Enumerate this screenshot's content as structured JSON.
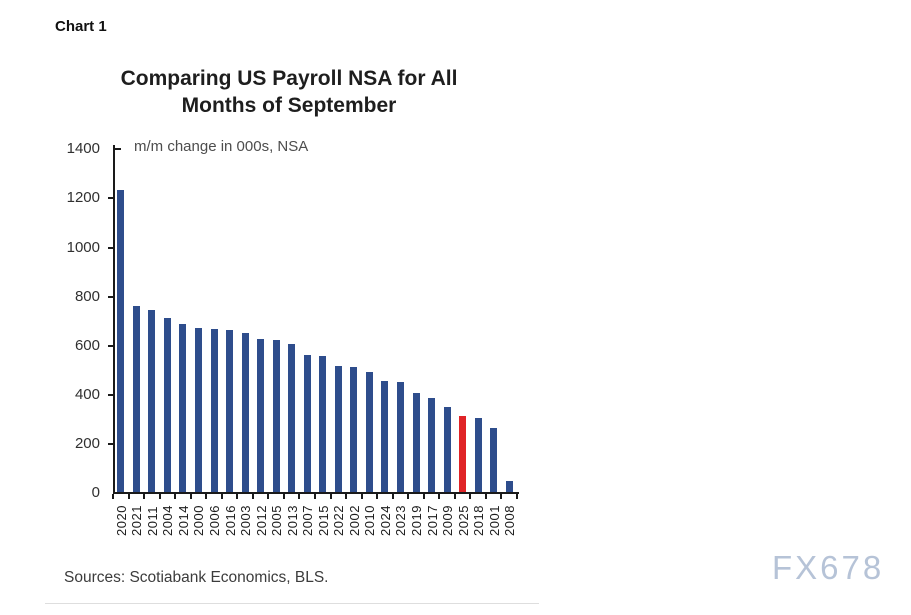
{
  "page": {
    "chart_label": "Chart 1",
    "sources": "Sources: Scotiabank Economics, BLS.",
    "watermark": "FX678"
  },
  "chart_data": {
    "type": "bar",
    "title_line1": "Comparing US Payroll NSA for All",
    "title_line2": "Months of September",
    "subtitle": "m/m change in 000s, NSA",
    "xlabel": "",
    "ylabel": "m/m change in 000s, NSA",
    "categories": [
      "2020",
      "2021",
      "2011",
      "2004",
      "2014",
      "2000",
      "2006",
      "2016",
      "2003",
      "2012",
      "2005",
      "2013",
      "2007",
      "2015",
      "2022",
      "2002",
      "2010",
      "2024",
      "2023",
      "2019",
      "2017",
      "2009",
      "2025",
      "2018",
      "2001",
      "2008"
    ],
    "values": [
      1230,
      757,
      742,
      710,
      686,
      667,
      662,
      658,
      648,
      622,
      618,
      601,
      560,
      553,
      514,
      510,
      487,
      452,
      448,
      405,
      381,
      347,
      310,
      301,
      259,
      45
    ],
    "highlight_category": "2025",
    "bar_color": "#2e4d8c",
    "highlight_color": "#e02427",
    "axis_color": "#1a1a1a",
    "ylim": [
      0,
      1400
    ],
    "y_ticks": [
      0,
      200,
      400,
      600,
      800,
      1000,
      1200,
      1400
    ],
    "grid": false,
    "legend_position": "none"
  }
}
